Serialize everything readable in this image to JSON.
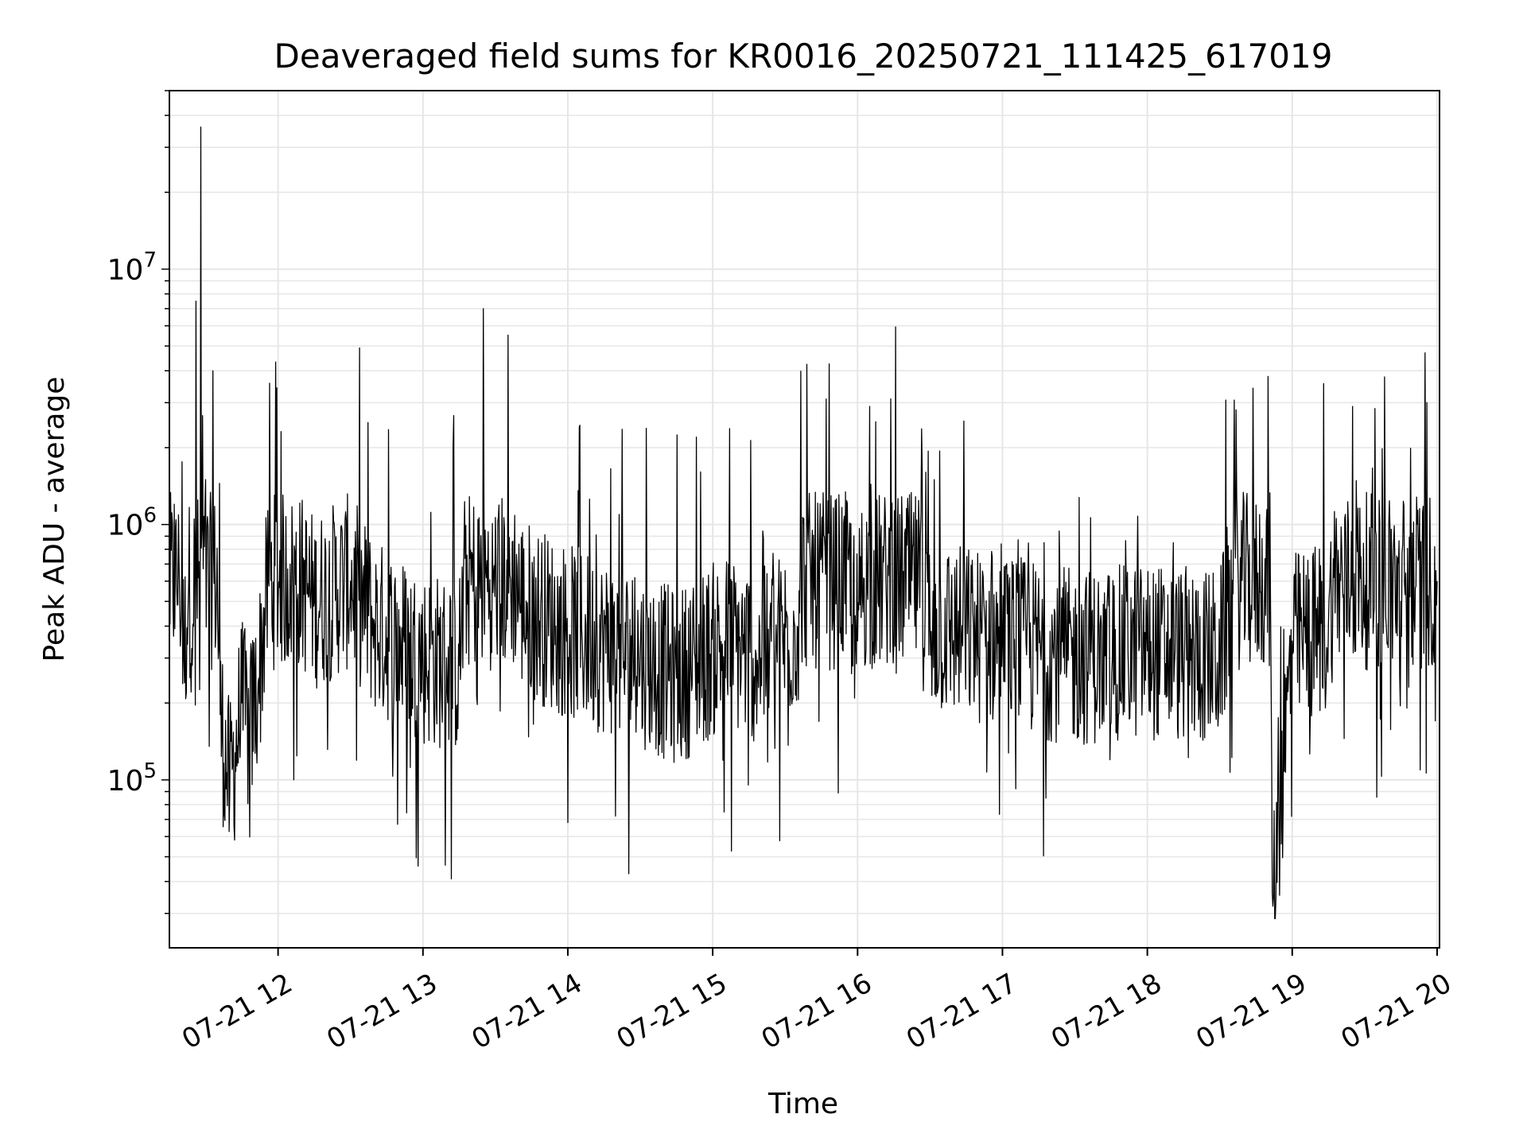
{
  "chart_data": {
    "type": "line",
    "title": "Deaveraged field sums for KR0016_20250721_111425_617019",
    "xlabel": "Time",
    "ylabel": "Peak ADU - average",
    "y_scale": "log",
    "ylim": [
      22000,
      50000000
    ],
    "xlim": [
      "2025-07-21 11:15",
      "2025-07-21 20:01"
    ],
    "grid": true,
    "x_ticks": [
      {
        "t": "2025-07-21 12:00",
        "label": "07-21 12"
      },
      {
        "t": "2025-07-21 13:00",
        "label": "07-21 13"
      },
      {
        "t": "2025-07-21 14:00",
        "label": "07-21 14"
      },
      {
        "t": "2025-07-21 15:00",
        "label": "07-21 15"
      },
      {
        "t": "2025-07-21 16:00",
        "label": "07-21 16"
      },
      {
        "t": "2025-07-21 17:00",
        "label": "07-21 17"
      },
      {
        "t": "2025-07-21 18:00",
        "label": "07-21 18"
      },
      {
        "t": "2025-07-21 19:00",
        "label": "07-21 19"
      },
      {
        "t": "2025-07-21 20:00",
        "label": "07-21 20"
      }
    ],
    "y_ticks": [
      {
        "value": 100000,
        "base": "10",
        "exp": "5"
      },
      {
        "value": 1000000,
        "base": "10",
        "exp": "6"
      },
      {
        "value": 10000000,
        "base": "10",
        "exp": "7"
      }
    ],
    "series_color": "#000000",
    "series": [
      {
        "x": [
          "2025-07-21 11:15",
          "2025-07-21 11:17",
          "2025-07-21 11:19",
          "2025-07-21 11:21",
          "2025-07-21 11:23",
          "2025-07-21 11:25",
          "2025-07-21 11:26",
          "2025-07-21 11:28",
          "2025-07-21 11:30",
          "2025-07-21 11:33",
          "2025-07-21 11:36",
          "2025-07-21 11:40",
          "2025-07-21 11:45",
          "2025-07-21 11:48",
          "2025-07-21 11:52",
          "2025-07-21 11:56",
          "2025-07-21 12:05",
          "2025-07-21 12:15",
          "2025-07-21 12:30",
          "2025-07-21 12:40",
          "2025-07-21 13:00",
          "2025-07-21 13:15",
          "2025-07-21 13:25",
          "2025-07-21 13:40",
          "2025-07-21 13:55",
          "2025-07-21 14:10",
          "2025-07-21 14:30",
          "2025-07-21 14:45",
          "2025-07-21 15:05",
          "2025-07-21 15:20",
          "2025-07-21 15:35",
          "2025-07-21 15:47",
          "2025-07-21 16:00",
          "2025-07-21 16:05",
          "2025-07-21 16:30",
          "2025-07-21 17:00",
          "2025-07-21 17:30",
          "2025-07-21 18:00",
          "2025-07-21 18:30",
          "2025-07-21 18:50",
          "2025-07-21 18:52",
          "2025-07-21 19:00",
          "2025-07-21 19:15",
          "2025-07-21 19:25",
          "2025-07-21 19:45",
          "2025-07-21 19:55",
          "2025-07-21 20:00"
        ],
        "values": [
          500000,
          1200000,
          700000,
          300000,
          600000,
          400000,
          7500000,
          36000000,
          1500000,
          4000000,
          180000,
          90000,
          200000,
          150000,
          250000,
          600000,
          700000,
          500000,
          600000,
          400000,
          300000,
          280000,
          7000000,
          500000,
          400000,
          350000,
          300000,
          250000,
          350000,
          300000,
          400000,
          3100000,
          350000,
          2900000,
          400000,
          350000,
          300000,
          320000,
          300000,
          3800000,
          32000,
          350000,
          400000,
          2900000,
          500000,
          4700000,
          600000
        ]
      }
    ]
  }
}
